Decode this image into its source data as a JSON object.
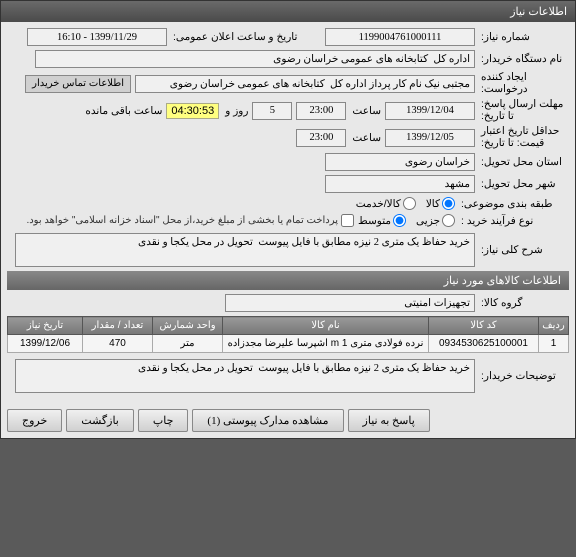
{
  "window": {
    "title": "اطلاعات نیاز"
  },
  "need": {
    "number_lbl": "شماره نیاز:",
    "number": "1199004761000111",
    "announce_lbl": "تاریخ و ساعت اعلان عمومی:",
    "announce": "1399/11/29 - 16:10",
    "buyer_org_lbl": "نام دستگاه خریدار:",
    "buyer_org": "اداره کل  کتابخانه های عمومی خراسان رضوی",
    "creator_lbl": "ایجاد کننده\nدرخواست:",
    "creator": "مجتبی نیک نام کار پرداز اداره کل  کتابخانه های عمومی خراسان رضوی",
    "contact_btn": "اطلاعات تماس خریدار",
    "deadline_reply_lbl": "مهلت ارسال پاسخ:\nتا تاریخ:",
    "deadline_reply_date": "1399/12/04",
    "time_lbl": "ساعت",
    "deadline_reply_time": "23:00",
    "days_lbl": "روز و",
    "days_remain": "5",
    "timer": "04:30:53",
    "remain_lbl": "ساعت باقی مانده",
    "price_valid_lbl": "حداقل تاریخ اعتبار\nقیمت: تا تاریخ:",
    "price_valid_date": "1399/12/05",
    "price_valid_time": "23:00",
    "province_lbl": "استان محل تحویل:",
    "province": "خراسان رضوی",
    "city_lbl": "شهر محل تحویل:",
    "city": "مشهد",
    "budget_cat_lbl": "طبقه بندی موضوعی:",
    "cat_goods": "کالا",
    "cat_service": "کالا/خدمت",
    "proc_type_lbl": "نوع فرآیند خرید :",
    "proc_small": "جزیی",
    "proc_medium": "متوسط",
    "partial_pay": "پرداخت تمام یا بخشی از مبلغ خرید،از محل \"اسناد خزانه اسلامی\" خواهد بود.",
    "desc_lbl": "شرح کلی نیاز:",
    "desc": "خرید حفاظ یک متری 2 نیزه مطابق با فایل پیوست  تحویل در محل یکجا و نقدی"
  },
  "goods_section": "اطلاعات کالاهای مورد نیاز",
  "goods": {
    "group_lbl": "گروه کالا:",
    "group": "تجهیزات امنیتی"
  },
  "table": {
    "cols": [
      "ردیف",
      "کد کالا",
      "نام کالا",
      "واحد شمارش",
      "تعداد / مقدار",
      "تاریخ نیاز"
    ],
    "rows": [
      [
        "1",
        "0934530625100001",
        "نرده فولادی متری 1 m اشپرسا علیرضا مجدزاده",
        "متر",
        "470",
        "1399/12/06"
      ]
    ]
  },
  "buyer_notes": {
    "lbl": "توضیحات خریدار:",
    "text": "خرید حفاظ یک متری 2 نیزه مطابق با فایل پیوست  تحویل در محل یکجا و نقدی"
  },
  "footer": {
    "reply": "پاسخ به نیاز",
    "attach": "مشاهده مدارک پیوستی (1)",
    "print": "چاپ",
    "back": "بازگشت",
    "exit": "خروج"
  }
}
